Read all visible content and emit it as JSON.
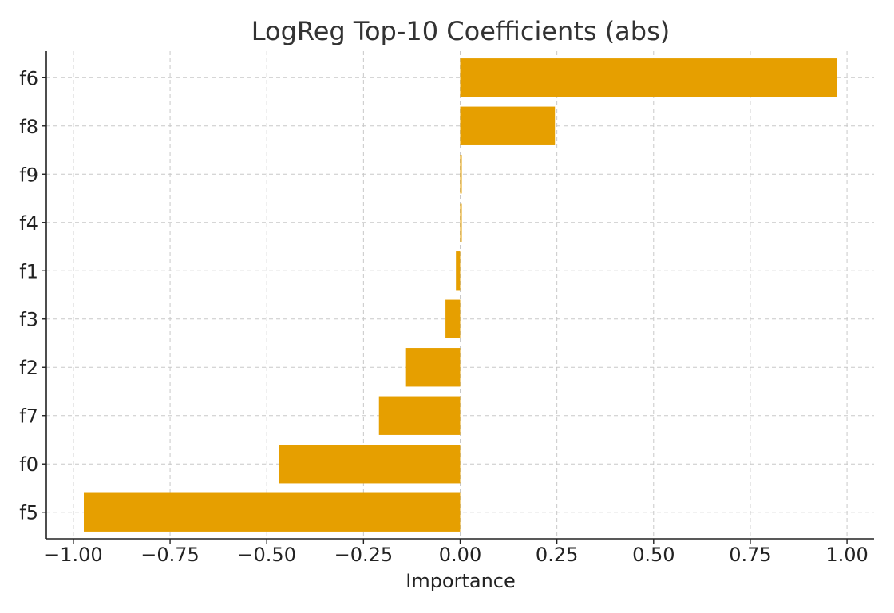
{
  "chart_data": {
    "type": "bar",
    "orientation": "horizontal",
    "title": "LogReg Top-10 Coefficients (abs)",
    "xlabel": "Importance",
    "ylabel": "",
    "xlim": [
      -1.07,
      1.07
    ],
    "x_ticks": [
      -1.0,
      -0.75,
      -0.5,
      -0.25,
      0.0,
      0.25,
      0.5,
      0.75,
      1.0
    ],
    "x_tick_labels": [
      "−1.00",
      "−0.75",
      "−0.50",
      "−0.25",
      "0.00",
      "0.25",
      "0.50",
      "0.75",
      "1.00"
    ],
    "categories": [
      "f6",
      "f8",
      "f9",
      "f4",
      "f1",
      "f3",
      "f2",
      "f7",
      "f0",
      "f5"
    ],
    "values": [
      0.975,
      0.245,
      0.003,
      0.003,
      -0.011,
      -0.038,
      -0.14,
      -0.21,
      -0.468,
      -0.973
    ],
    "bar_color": "#e69f00",
    "grid": true
  }
}
